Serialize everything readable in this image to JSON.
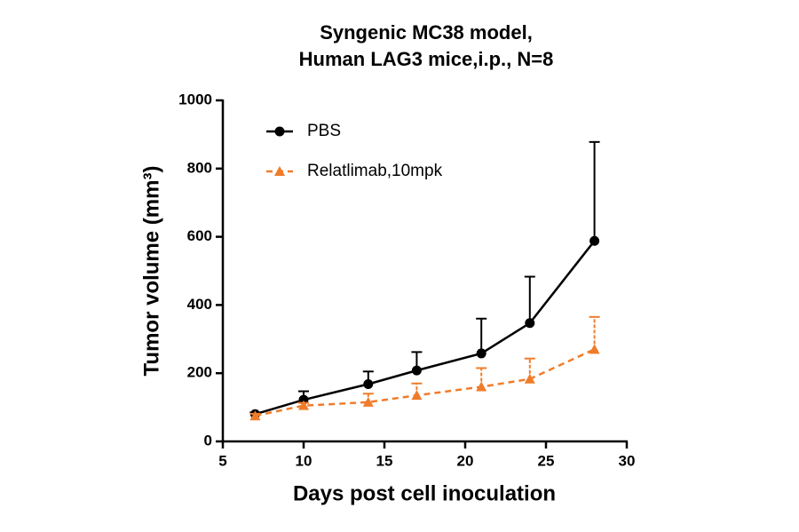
{
  "chart_data": {
    "type": "line",
    "title": [
      "Syngenic MC38 model,",
      "Human LAG3 mice,i.p., N=8"
    ],
    "xlabel": "Days post cell inoculation",
    "ylabel": "Tumor volume (mm³)",
    "x": [
      7,
      10,
      14,
      17,
      21,
      24,
      28
    ],
    "series": [
      {
        "name": "PBS",
        "color": "#000000",
        "marker": "circle",
        "dash": false,
        "values": [
          80,
          122,
          168,
          208,
          258,
          347,
          588
        ],
        "errors": [
          5,
          25,
          37,
          54,
          102,
          136,
          290
        ]
      },
      {
        "name": "Relatlimab,10mpk",
        "color": "#f07c2a",
        "marker": "triangle",
        "dash": true,
        "values": [
          75,
          105,
          115,
          135,
          160,
          183,
          270
        ],
        "errors": [
          6,
          8,
          25,
          35,
          55,
          60,
          95
        ]
      }
    ],
    "xlim": [
      5,
      30
    ],
    "xticks": [
      5,
      10,
      15,
      20,
      25,
      30
    ],
    "ylim": [
      0,
      1000
    ],
    "yticks": [
      0,
      200,
      400,
      600,
      800,
      1000
    ],
    "legend": "upper-left"
  }
}
